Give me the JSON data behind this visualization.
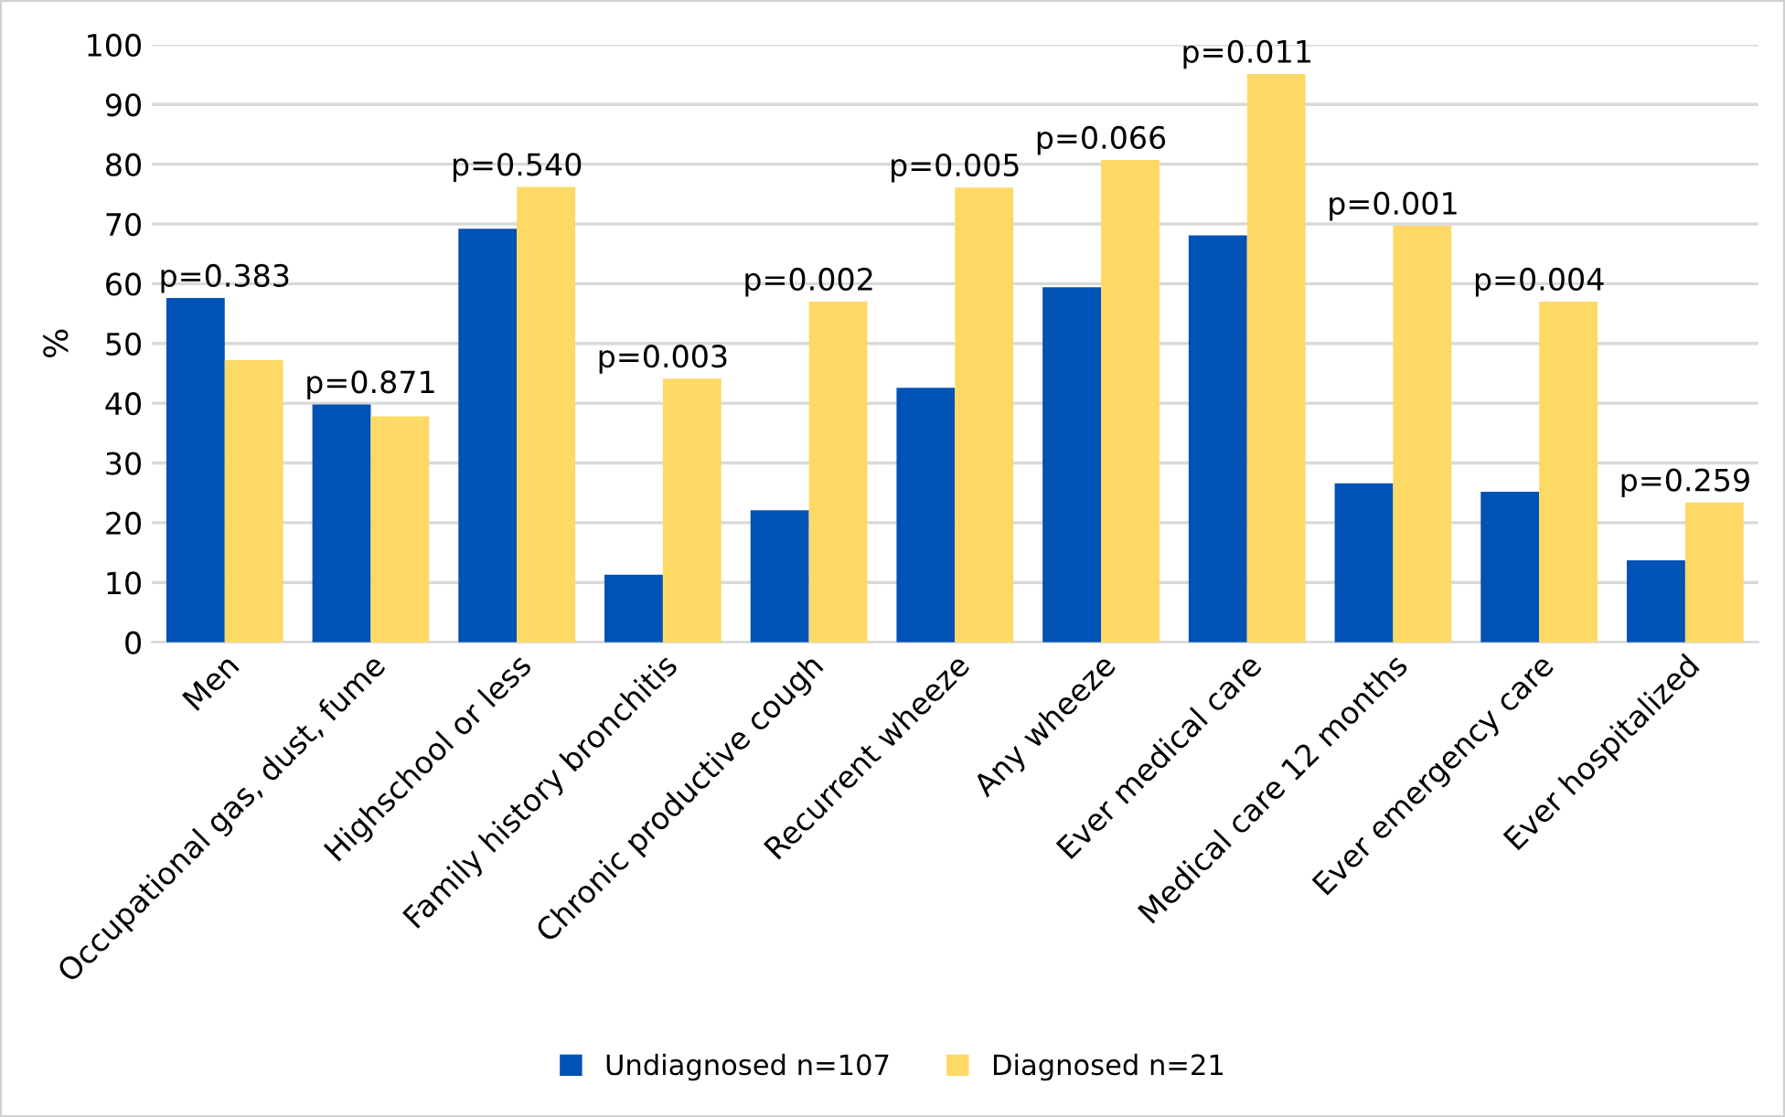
{
  "chart_data": {
    "type": "bar",
    "ylabel": "%",
    "categories": [
      "Men",
      "Occupational gas, dust, fume",
      "Highschool or less",
      "Family history bronchitis",
      "Chronic productive cough",
      "Recurrent wheeze",
      "Any wheeze",
      "Ever medical care",
      "Medical care 12 months",
      "Ever emergency care",
      "Ever hospitalized"
    ],
    "series": [
      {
        "name": "Undiagnosed n=107",
        "color": "#0052b4",
        "values": [
          57.6,
          39.8,
          69.2,
          11.3,
          22.1,
          42.6,
          59.4,
          68.1,
          26.6,
          25.2,
          13.7
        ]
      },
      {
        "name": "Diagnosed n=21",
        "color": "#ffd966",
        "values": [
          47.2,
          37.8,
          76.2,
          44.1,
          57.0,
          76.1,
          80.7,
          95.1,
          69.7,
          57.0,
          23.4
        ]
      }
    ],
    "annotations": [
      {
        "text": "p=0.383",
        "x": "Men",
        "y": 57.6
      },
      {
        "text": "p=0.871",
        "x": "Occupational gas, dust, fume",
        "y": 39.8
      },
      {
        "text": "p=0.540",
        "x": "Highschool or less",
        "y": 76.2
      },
      {
        "text": "p=0.003",
        "x": "Family history bronchitis",
        "y": 44.1
      },
      {
        "text": "p=0.002",
        "x": "Chronic productive cough",
        "y": 57.0
      },
      {
        "text": "p=0.005",
        "x": "Recurrent wheeze",
        "y": 76.1
      },
      {
        "text": "p=0.066",
        "x": "Any wheeze",
        "y": 80.7
      },
      {
        "text": "p=0.011",
        "x": "Ever medical care",
        "y": 95.1
      },
      {
        "text": "p=0.001",
        "x": "Medical care 12 months",
        "y": 69.7
      },
      {
        "text": "p=0.004",
        "x": "Ever emergency care",
        "y": 57.0
      },
      {
        "text": "p=0.259",
        "x": "Ever hospitalized",
        "y": 23.4
      }
    ],
    "ylim": [
      0,
      100
    ],
    "yticks": [
      0,
      10,
      20,
      30,
      40,
      50,
      60,
      70,
      80,
      90,
      100
    ],
    "grid": "y",
    "legend": "bottom"
  }
}
